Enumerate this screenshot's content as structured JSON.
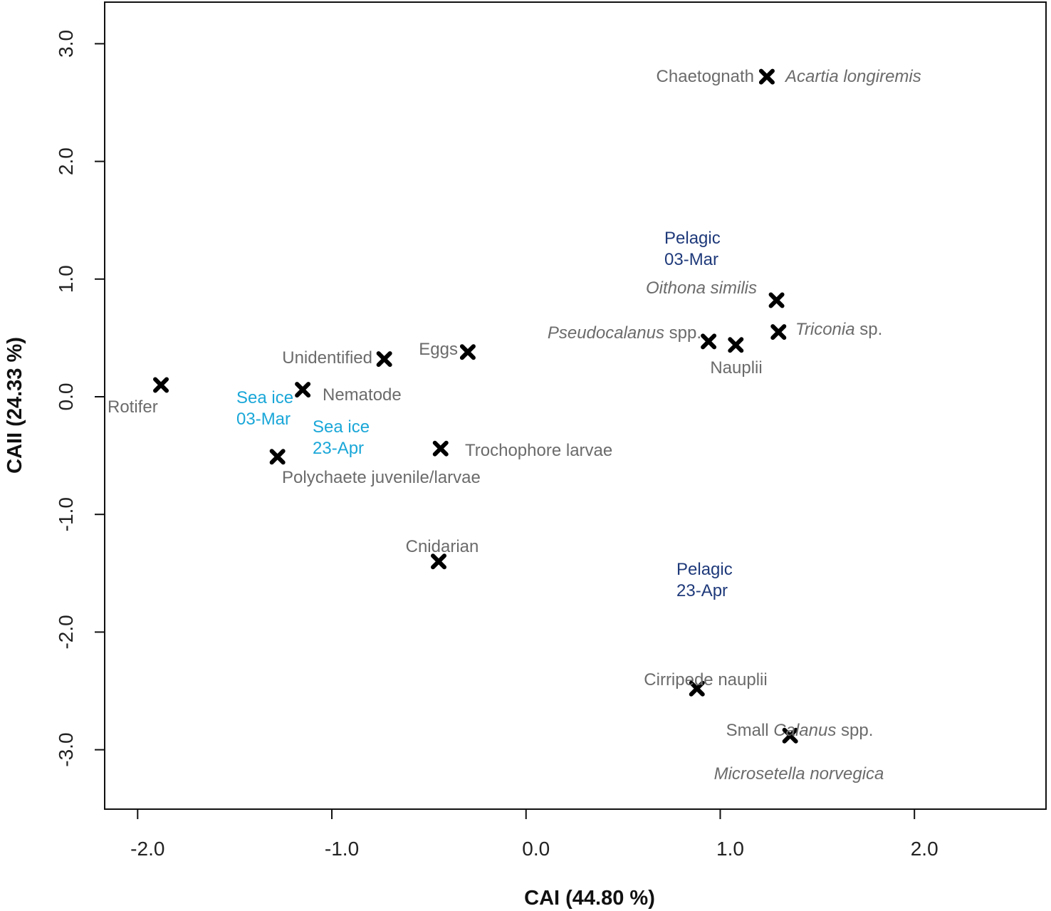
{
  "colors": {
    "background": "#ffffff",
    "axis": "#111111",
    "marker": "#000000",
    "label_grey": "#6b6b6b",
    "sea_ice": "#1aa7d8",
    "pelagic": "#1f3a7a"
  },
  "chart_data": {
    "type": "scatter",
    "title": "",
    "xlabel": "CAI (44.80 %)",
    "ylabel": "CAII (24.33 %)",
    "xlim": [
      -2.16,
      2.66
    ],
    "ylim": [
      -3.35,
      3.35
    ],
    "x_ticks": [
      -2.0,
      -1.0,
      0.0,
      1.0,
      2.0
    ],
    "x_tick_labels": [
      "-2.0",
      "-1.0",
      "0.0",
      "1.0",
      "2.0"
    ],
    "y_ticks": [
      -3.0,
      -2.0,
      -1.0,
      0.0,
      1.0,
      2.0,
      3.0
    ],
    "y_tick_labels": [
      "-3.0",
      "-2.0",
      "-1.0",
      "0.0",
      "1.0",
      "2.0",
      "3.0"
    ],
    "grid": false,
    "legend": "none",
    "points": [
      {
        "id": "rotifer",
        "x": -1.88,
        "y": 0.1
      },
      {
        "id": "nematode",
        "x": -1.15,
        "y": 0.06
      },
      {
        "id": "unidentified",
        "x": -0.73,
        "y": 0.32
      },
      {
        "id": "eggs",
        "x": -0.3,
        "y": 0.38
      },
      {
        "id": "polychaete",
        "x": -1.28,
        "y": -0.51
      },
      {
        "id": "trochophore",
        "x": -0.44,
        "y": -0.44
      },
      {
        "id": "cnidarian",
        "x": -0.45,
        "y": -1.4
      },
      {
        "id": "chaetognath-acartia",
        "x": 1.24,
        "y": 2.72
      },
      {
        "id": "oithona",
        "x": 1.29,
        "y": 0.82
      },
      {
        "id": "triconia",
        "x": 1.3,
        "y": 0.55
      },
      {
        "id": "pseudocalanus",
        "x": 0.94,
        "y": 0.47
      },
      {
        "id": "nauplii",
        "x": 1.08,
        "y": 0.44
      },
      {
        "id": "cirripede",
        "x": 0.88,
        "y": -2.48
      },
      {
        "id": "small-calanus-microsetella",
        "x": 1.36,
        "y": -2.88
      }
    ],
    "annotations": [
      {
        "id": "rotifer",
        "type": "species",
        "parts": [
          {
            "text": "Rotifer",
            "italic": false
          }
        ]
      },
      {
        "id": "nematode",
        "type": "species",
        "parts": [
          {
            "text": "Nematode",
            "italic": false
          }
        ]
      },
      {
        "id": "unidentified",
        "type": "species",
        "parts": [
          {
            "text": "Unidentified",
            "italic": false
          }
        ]
      },
      {
        "id": "eggs",
        "type": "species",
        "parts": [
          {
            "text": "Eggs",
            "italic": false
          }
        ]
      },
      {
        "id": "polychaete",
        "type": "species",
        "parts": [
          {
            "text": "Polychaete juvenile/larvae",
            "italic": false
          }
        ]
      },
      {
        "id": "trochophore",
        "type": "species",
        "parts": [
          {
            "text": "Trochophore larvae",
            "italic": false
          }
        ]
      },
      {
        "id": "cnidarian",
        "type": "species",
        "parts": [
          {
            "text": "Cnidarian",
            "italic": false
          }
        ]
      },
      {
        "id": "chaetognath",
        "type": "species",
        "parts": [
          {
            "text": "Chaetognath",
            "italic": false
          }
        ]
      },
      {
        "id": "acartia",
        "type": "species",
        "parts": [
          {
            "text": "Acartia longiremis",
            "italic": true
          }
        ]
      },
      {
        "id": "oithona",
        "type": "species",
        "parts": [
          {
            "text": "Oithona similis",
            "italic": true
          }
        ]
      },
      {
        "id": "triconia",
        "type": "species",
        "parts": [
          {
            "text": "Triconia",
            "italic": true
          },
          {
            "text": " sp.",
            "italic": false
          }
        ]
      },
      {
        "id": "pseudocalanus",
        "type": "species",
        "parts": [
          {
            "text": "Pseudocalanus",
            "italic": true
          },
          {
            "text": " spp.",
            "italic": false
          }
        ]
      },
      {
        "id": "nauplii",
        "type": "species",
        "parts": [
          {
            "text": "Nauplii",
            "italic": false
          }
        ]
      },
      {
        "id": "cirripede",
        "type": "species",
        "parts": [
          {
            "text": "Cirripede nauplii",
            "italic": false
          }
        ]
      },
      {
        "id": "small-calanus",
        "type": "species",
        "parts": [
          {
            "text": "Small ",
            "italic": false
          },
          {
            "text": "Calanus",
            "italic": true
          },
          {
            "text": " spp.",
            "italic": false
          }
        ]
      },
      {
        "id": "microsetella",
        "type": "species",
        "parts": [
          {
            "text": "Microsetella norvegica",
            "italic": true
          }
        ]
      },
      {
        "id": "sea-ice-03-mar",
        "type": "sea_ice",
        "lines": [
          "Sea ice",
          "03-Mar"
        ]
      },
      {
        "id": "sea-ice-23-apr",
        "type": "sea_ice",
        "lines": [
          "Sea ice",
          "23-Apr"
        ]
      },
      {
        "id": "pelagic-03-mar",
        "type": "pelagic",
        "lines": [
          "Pelagic",
          "03-Mar"
        ]
      },
      {
        "id": "pelagic-23-apr",
        "type": "pelagic",
        "lines": [
          "Pelagic",
          "23-Apr"
        ]
      }
    ]
  }
}
